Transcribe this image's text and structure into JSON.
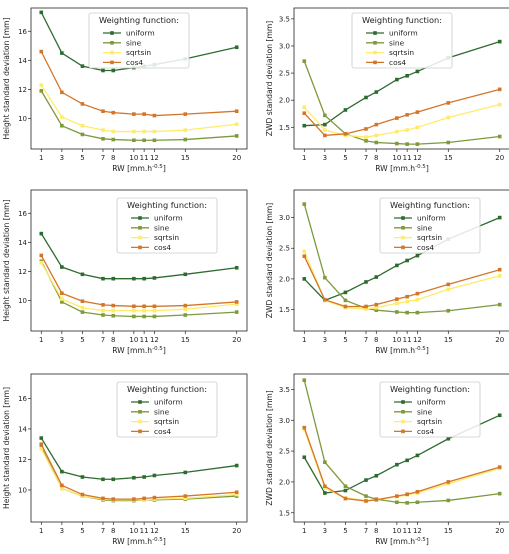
{
  "colors": {
    "uniform": "#2e6b30",
    "sine": "#7d9a3d",
    "sqrtsin": "#ffeb6b",
    "cos4": "#d4762a",
    "axis": "#222222",
    "legend_border": "#cccccc"
  },
  "chart_data": [
    {
      "type": "line",
      "xlabel": "RW [mm.h^-0.5]",
      "ylabel": "Height standard deviation [mm]",
      "ylim": [
        7.9,
        17.6
      ],
      "yticks": [
        10,
        12,
        14,
        16
      ],
      "x": [
        1,
        3,
        5,
        7,
        8,
        10,
        11,
        12,
        15,
        20
      ],
      "xticklabels": [
        "1",
        "3",
        "5",
        "7",
        "8",
        "10",
        "11",
        "12",
        "15",
        "20"
      ],
      "grid": false,
      "legend_title": "Weighting function:",
      "legend_position": "top-center",
      "series": [
        {
          "name": "uniform",
          "values": [
            17.3,
            14.5,
            13.6,
            13.3,
            13.3,
            13.5,
            13.6,
            13.7,
            14.1,
            14.9
          ]
        },
        {
          "name": "sine",
          "values": [
            11.9,
            9.5,
            8.9,
            8.6,
            8.55,
            8.5,
            8.5,
            8.5,
            8.55,
            8.8
          ]
        },
        {
          "name": "sqrtsin",
          "values": [
            12.3,
            10.1,
            9.5,
            9.2,
            9.1,
            9.1,
            9.1,
            9.1,
            9.2,
            9.6
          ]
        },
        {
          "name": "cos4",
          "values": [
            14.6,
            11.8,
            11.0,
            10.5,
            10.4,
            10.3,
            10.3,
            10.2,
            10.3,
            10.5
          ]
        }
      ]
    },
    {
      "type": "line",
      "xlabel": "RW [mm.h^-0.5]",
      "ylabel": "ZWD standard deviation [mm]",
      "ylim": [
        1.1,
        3.7
      ],
      "yticks": [
        1.5,
        2.0,
        2.5,
        3.0,
        3.5
      ],
      "x": [
        1,
        3,
        5,
        7,
        8,
        10,
        11,
        12,
        15,
        20
      ],
      "xticklabels": [
        "1",
        "3",
        "5",
        "7",
        "8",
        "10",
        "11",
        "12",
        "15",
        "20"
      ],
      "grid": false,
      "legend_title": "Weighting function:",
      "legend_position": "top-center",
      "series": [
        {
          "name": "uniform",
          "values": [
            1.53,
            1.55,
            1.82,
            2.05,
            2.15,
            2.38,
            2.45,
            2.53,
            2.78,
            3.08
          ]
        },
        {
          "name": "sine",
          "values": [
            2.72,
            1.72,
            1.38,
            1.25,
            1.22,
            1.2,
            1.19,
            1.19,
            1.22,
            1.33
          ]
        },
        {
          "name": "sqrtsin",
          "values": [
            1.87,
            1.45,
            1.35,
            1.32,
            1.35,
            1.42,
            1.45,
            1.5,
            1.68,
            1.92
          ]
        },
        {
          "name": "cos4",
          "values": [
            1.76,
            1.35,
            1.38,
            1.47,
            1.55,
            1.67,
            1.73,
            1.78,
            1.95,
            2.2
          ]
        }
      ]
    },
    {
      "type": "line",
      "xlabel": "RW [mm.h^-0.5]",
      "ylabel": "Height standard deviation [mm]",
      "ylim": [
        7.9,
        17.6
      ],
      "yticks": [
        10,
        12,
        14,
        16
      ],
      "x": [
        1,
        3,
        5,
        7,
        8,
        10,
        11,
        12,
        15,
        20
      ],
      "xticklabels": [
        "1",
        "3",
        "5",
        "7",
        "8",
        "10",
        "11",
        "12",
        "15",
        "20"
      ],
      "grid": false,
      "legend_title": "Weighting function:",
      "legend_position": "top-right",
      "series": [
        {
          "name": "uniform",
          "values": [
            14.6,
            12.3,
            11.8,
            11.5,
            11.5,
            11.5,
            11.5,
            11.55,
            11.8,
            12.25
          ]
        },
        {
          "name": "sine",
          "values": [
            12.7,
            9.9,
            9.2,
            9.0,
            8.95,
            8.9,
            8.9,
            8.9,
            9.0,
            9.2
          ]
        },
        {
          "name": "sqrtsin",
          "values": [
            12.6,
            10.1,
            9.5,
            9.3,
            9.3,
            9.3,
            9.3,
            9.3,
            9.4,
            9.75
          ]
        },
        {
          "name": "cos4",
          "values": [
            13.1,
            10.5,
            9.95,
            9.7,
            9.65,
            9.6,
            9.6,
            9.6,
            9.65,
            9.9
          ]
        }
      ]
    },
    {
      "type": "line",
      "xlabel": "RW [mm.h^-0.5]",
      "ylabel": "ZWD standard deviation [mm]",
      "ylim": [
        1.15,
        3.45
      ],
      "yticks": [
        1.5,
        2.0,
        2.5,
        3.0
      ],
      "x": [
        1,
        3,
        5,
        7,
        8,
        10,
        11,
        12,
        15,
        20
      ],
      "xticklabels": [
        "1",
        "3",
        "5",
        "7",
        "8",
        "10",
        "11",
        "12",
        "15",
        "20"
      ],
      "grid": false,
      "legend_title": "Weighting function:",
      "legend_position": "top-right",
      "series": [
        {
          "name": "uniform",
          "values": [
            2.0,
            1.65,
            1.78,
            1.95,
            2.03,
            2.22,
            2.3,
            2.38,
            2.65,
            3.0
          ]
        },
        {
          "name": "sine",
          "values": [
            3.22,
            2.02,
            1.65,
            1.52,
            1.49,
            1.46,
            1.45,
            1.45,
            1.48,
            1.58
          ]
        },
        {
          "name": "sqrtsin",
          "values": [
            2.45,
            1.65,
            1.53,
            1.51,
            1.53,
            1.6,
            1.63,
            1.66,
            1.83,
            2.05
          ]
        },
        {
          "name": "cos4",
          "values": [
            2.37,
            1.66,
            1.55,
            1.55,
            1.58,
            1.67,
            1.71,
            1.76,
            1.91,
            2.15
          ]
        }
      ]
    },
    {
      "type": "line",
      "xlabel": "RW [mm.h^-0.5]",
      "ylabel": "Height standard deviation [mm]",
      "ylim": [
        7.9,
        17.6
      ],
      "yticks": [
        10,
        12,
        14,
        16
      ],
      "x": [
        1,
        3,
        5,
        7,
        8,
        10,
        11,
        12,
        15,
        20
      ],
      "xticklabels": [
        "1",
        "3",
        "5",
        "7",
        "8",
        "10",
        "11",
        "12",
        "15",
        "20"
      ],
      "grid": false,
      "legend_title": "Weighting function:",
      "legend_position": "top-right",
      "series": [
        {
          "name": "uniform",
          "values": [
            13.4,
            11.2,
            10.85,
            10.7,
            10.7,
            10.8,
            10.85,
            10.95,
            11.15,
            11.6
          ]
        },
        {
          "name": "sine",
          "values": [
            12.8,
            10.1,
            9.6,
            9.35,
            9.3,
            9.3,
            9.35,
            9.35,
            9.4,
            9.6
          ]
        },
        {
          "name": "sqrtsin",
          "values": [
            12.7,
            10.1,
            9.6,
            9.4,
            9.35,
            9.35,
            9.35,
            9.4,
            9.45,
            9.7
          ]
        },
        {
          "name": "cos4",
          "values": [
            13.0,
            10.3,
            9.7,
            9.45,
            9.4,
            9.4,
            9.45,
            9.5,
            9.6,
            9.85
          ]
        }
      ]
    },
    {
      "type": "line",
      "xlabel": "RW [mm.h^-0.5]",
      "ylabel": "ZWD standard deviation [mm]",
      "ylim": [
        1.35,
        3.75
      ],
      "yticks": [
        1.5,
        2.0,
        2.5,
        3.0,
        3.5
      ],
      "x": [
        1,
        3,
        5,
        7,
        8,
        10,
        11,
        12,
        15,
        20
      ],
      "xticklabels": [
        "1",
        "3",
        "5",
        "7",
        "8",
        "10",
        "11",
        "12",
        "15",
        "20"
      ],
      "grid": false,
      "legend_title": "Weighting function:",
      "legend_position": "top-right",
      "series": [
        {
          "name": "uniform",
          "values": [
            2.4,
            1.82,
            1.86,
            2.03,
            2.1,
            2.28,
            2.35,
            2.43,
            2.7,
            3.08
          ]
        },
        {
          "name": "sine",
          "values": [
            3.65,
            2.32,
            1.93,
            1.77,
            1.72,
            1.67,
            1.66,
            1.67,
            1.7,
            1.81
          ]
        },
        {
          "name": "sqrtsin",
          "values": [
            2.85,
            1.9,
            1.74,
            1.7,
            1.71,
            1.76,
            1.79,
            1.82,
            1.97,
            2.22
          ]
        },
        {
          "name": "cos4",
          "values": [
            2.88,
            1.93,
            1.73,
            1.69,
            1.71,
            1.77,
            1.8,
            1.84,
            2.0,
            2.24
          ]
        }
      ]
    }
  ]
}
